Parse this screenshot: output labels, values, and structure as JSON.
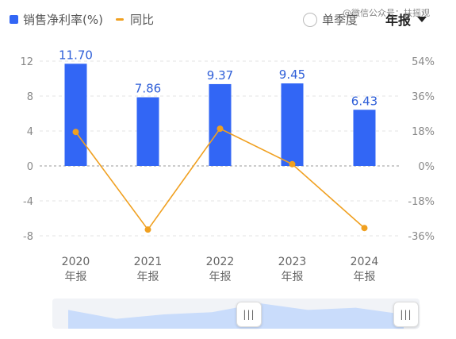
{
  "legend": {
    "bar_label": "销售净利率(%)",
    "line_label": "同比"
  },
  "toggle": {
    "label": "单季度"
  },
  "period": {
    "label": "年报"
  },
  "watermark": {
    "text": "@微信公众号：扶摇观"
  },
  "colors": {
    "bar": "#3266f5",
    "line": "#f0a020",
    "slider_fill": "#c9dcfb"
  },
  "chart_data": {
    "type": "bar",
    "categories": [
      "2020\n年报",
      "2021\n年报",
      "2022\n年报",
      "2023\n年报",
      "2024\n年报"
    ],
    "series": [
      {
        "name": "销售净利率(%)",
        "type": "bar",
        "axis": "left",
        "values": [
          11.7,
          7.86,
          9.37,
          9.45,
          6.43
        ],
        "data_labels": [
          "11.70",
          "7.86",
          "9.37",
          "9.45",
          "6.43"
        ]
      },
      {
        "name": "同比",
        "type": "line",
        "axis": "right",
        "values": [
          17.5,
          -32.8,
          19.2,
          0.9,
          -32.0
        ]
      }
    ],
    "y_left": {
      "ticks": [
        12,
        8,
        4,
        0,
        -4,
        -8
      ],
      "tick_labels": [
        "12",
        "8",
        "4",
        "0",
        "-4",
        "-8"
      ],
      "ylim": [
        -8,
        12
      ]
    },
    "y_right": {
      "ticks": [
        54,
        36,
        18,
        0,
        -18,
        -36
      ],
      "tick_labels": [
        "54%",
        "36%",
        "18%",
        "0%",
        "-18%",
        "-36%"
      ],
      "ylim": [
        -36,
        54
      ]
    },
    "grid": true
  },
  "slider": {
    "handle_left_label": "|||",
    "handle_right_label": "|||",
    "overview_values": [
      7,
      3,
      5,
      6,
      10,
      7,
      8,
      5
    ]
  }
}
